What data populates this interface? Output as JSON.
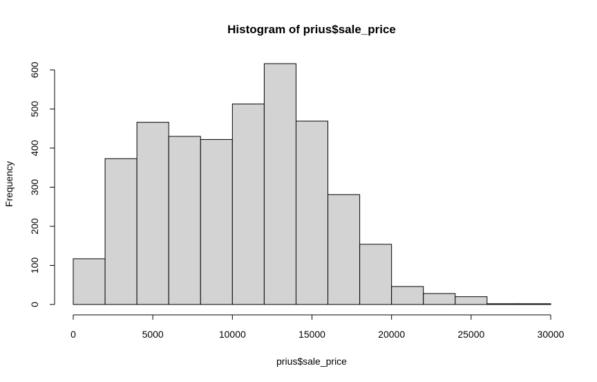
{
  "chart_data": {
    "type": "bar",
    "title": "Histogram of prius$sale_price",
    "xlabel": "prius$sale_price",
    "ylabel": "Frequency",
    "bin_edges": [
      0,
      2000,
      4000,
      6000,
      8000,
      10000,
      12000,
      14000,
      16000,
      18000,
      20000,
      22000,
      24000,
      26000,
      28000,
      30000
    ],
    "values": [
      117,
      373,
      466,
      430,
      422,
      513,
      616,
      469,
      281,
      154,
      46,
      28,
      20,
      2,
      2
    ],
    "xlim": [
      0,
      30000
    ],
    "ylim": [
      0,
      600
    ],
    "x_ticks": [
      0,
      5000,
      10000,
      15000,
      20000,
      25000,
      30000
    ],
    "y_ticks": [
      0,
      100,
      200,
      300,
      400,
      500,
      600
    ],
    "x_tick_labels": [
      "0",
      "5000",
      "10000",
      "15000",
      "20000",
      "25000",
      "30000"
    ],
    "y_tick_labels": [
      "0",
      "100",
      "200",
      "300",
      "400",
      "500",
      "600"
    ],
    "grid": false,
    "legend": "none"
  },
  "colors": {
    "bar_fill": "#d3d3d3",
    "bar_stroke": "#000000",
    "axis": "#000000"
  }
}
